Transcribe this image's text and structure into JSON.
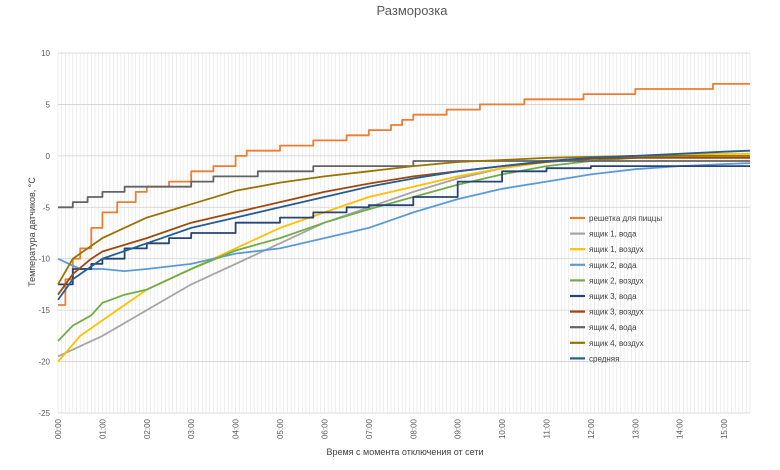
{
  "chart_data": {
    "type": "line",
    "title": "Разморозка",
    "xlabel": "Время с момента отключения от сети",
    "ylabel": "Температура датчиков, °C",
    "ylim": [
      -25,
      10
    ],
    "y_ticks": [
      "10",
      "5",
      "0",
      "-5",
      "-10",
      "-15",
      "-20",
      "-25"
    ],
    "xlim": [
      "00:00",
      "15:35"
    ],
    "x_ticks": [
      "00:00",
      "01:00",
      "02:00",
      "03:00",
      "04:00",
      "05:00",
      "06:00",
      "07:00",
      "08:00",
      "09:00",
      "10:00",
      "11:00",
      "12:00",
      "13:00",
      "14:00",
      "15:00"
    ],
    "grid": "dense vertical gridlines, horizontal at every 5 °C",
    "legend_position": "right",
    "series": [
      {
        "name": "решетка для пиццы",
        "color": "#ED7D31",
        "style": "step",
        "points": [
          [
            "00:00",
            -14.5
          ],
          [
            "00:10",
            -12
          ],
          [
            "00:20",
            -10
          ],
          [
            "00:30",
            -9
          ],
          [
            "00:45",
            -7
          ],
          [
            "01:00",
            -5.5
          ],
          [
            "01:20",
            -4.5
          ],
          [
            "01:45",
            -3.5
          ],
          [
            "02:00",
            -3
          ],
          [
            "02:30",
            -2.5
          ],
          [
            "03:00",
            -1.5
          ],
          [
            "03:30",
            -1
          ],
          [
            "04:00",
            0
          ],
          [
            "04:15",
            0.5
          ],
          [
            "05:00",
            1
          ],
          [
            "05:45",
            1.5
          ],
          [
            "06:30",
            2
          ],
          [
            "07:00",
            2.5
          ],
          [
            "07:30",
            3
          ],
          [
            "07:45",
            3.5
          ],
          [
            "08:00",
            4
          ],
          [
            "08:45",
            4.5
          ],
          [
            "09:30",
            5
          ],
          [
            "10:30",
            5.5
          ],
          [
            "11:50",
            6
          ],
          [
            "13:00",
            6.5
          ],
          [
            "14:45",
            7
          ],
          [
            "15:35",
            7
          ]
        ]
      },
      {
        "name": "ящик 1, вода",
        "color": "#A5A5A5",
        "style": "line",
        "points": [
          [
            "00:00",
            -19.5
          ],
          [
            "01:00",
            -17.5
          ],
          [
            "02:00",
            -15
          ],
          [
            "03:00",
            -12.5
          ],
          [
            "04:00",
            -10.5
          ],
          [
            "05:00",
            -8.5
          ],
          [
            "06:00",
            -6.5
          ],
          [
            "07:00",
            -5
          ],
          [
            "08:00",
            -3.5
          ],
          [
            "09:00",
            -2.2
          ],
          [
            "10:00",
            -1.2
          ],
          [
            "11:00",
            -0.6
          ],
          [
            "12:00",
            -0.3
          ],
          [
            "13:00",
            0
          ],
          [
            "14:00",
            0
          ],
          [
            "15:00",
            0
          ],
          [
            "15:35",
            0
          ]
        ]
      },
      {
        "name": "ящик 1, воздух",
        "color": "#FFC000",
        "style": "line",
        "points": [
          [
            "00:00",
            -20
          ],
          [
            "00:30",
            -17.5
          ],
          [
            "01:00",
            -16
          ],
          [
            "02:00",
            -13
          ],
          [
            "03:00",
            -11
          ],
          [
            "04:00",
            -9
          ],
          [
            "05:00",
            -7
          ],
          [
            "06:00",
            -5.5
          ],
          [
            "07:00",
            -4
          ],
          [
            "08:00",
            -3
          ],
          [
            "09:00",
            -2
          ],
          [
            "10:00",
            -1.2
          ],
          [
            "11:00",
            -0.6
          ],
          [
            "12:00",
            -0.2
          ],
          [
            "13:00",
            0
          ],
          [
            "14:00",
            0.1
          ],
          [
            "15:00",
            0.2
          ],
          [
            "15:35",
            0.2
          ]
        ]
      },
      {
        "name": "ящик 2, вода",
        "color": "#5B9BD5",
        "style": "line",
        "points": [
          [
            "00:00",
            -10
          ],
          [
            "00:15",
            -10.5
          ],
          [
            "00:30",
            -11
          ],
          [
            "01:00",
            -11
          ],
          [
            "01:30",
            -11.2
          ],
          [
            "02:00",
            -11
          ],
          [
            "03:00",
            -10.5
          ],
          [
            "04:00",
            -9.5
          ],
          [
            "05:00",
            -9
          ],
          [
            "06:00",
            -8
          ],
          [
            "07:00",
            -7
          ],
          [
            "08:00",
            -5.5
          ],
          [
            "09:00",
            -4.2
          ],
          [
            "10:00",
            -3.2
          ],
          [
            "11:00",
            -2.5
          ],
          [
            "12:00",
            -1.8
          ],
          [
            "13:00",
            -1.3
          ],
          [
            "14:00",
            -1
          ],
          [
            "15:00",
            -0.8
          ],
          [
            "15:35",
            -0.7
          ]
        ]
      },
      {
        "name": "ящик 2, воздух",
        "color": "#70AD47",
        "style": "line",
        "points": [
          [
            "00:00",
            -18
          ],
          [
            "00:20",
            -16.5
          ],
          [
            "00:45",
            -15.5
          ],
          [
            "01:00",
            -14.3
          ],
          [
            "01:30",
            -13.5
          ],
          [
            "02:00",
            -13
          ],
          [
            "03:00",
            -11
          ],
          [
            "04:00",
            -9.2
          ],
          [
            "05:00",
            -8
          ],
          [
            "06:00",
            -6.5
          ],
          [
            "07:00",
            -5.2
          ],
          [
            "08:00",
            -4
          ],
          [
            "09:00",
            -2.8
          ],
          [
            "10:00",
            -1.8
          ],
          [
            "11:00",
            -1
          ],
          [
            "12:00",
            -0.5
          ],
          [
            "13:00",
            -0.2
          ],
          [
            "14:00",
            0
          ],
          [
            "15:00",
            0
          ],
          [
            "15:35",
            0
          ]
        ]
      },
      {
        "name": "ящик 3, вода",
        "color": "#264478",
        "style": "step",
        "points": [
          [
            "00:00",
            -12.5
          ],
          [
            "00:20",
            -11
          ],
          [
            "00:45",
            -10.5
          ],
          [
            "01:00",
            -10
          ],
          [
            "01:30",
            -9
          ],
          [
            "02:00",
            -8.5
          ],
          [
            "02:30",
            -8
          ],
          [
            "03:00",
            -7.5
          ],
          [
            "04:00",
            -6.5
          ],
          [
            "05:00",
            -6
          ],
          [
            "05:45",
            -5.5
          ],
          [
            "06:30",
            -5
          ],
          [
            "07:00",
            -4.8
          ],
          [
            "08:00",
            -4
          ],
          [
            "09:00",
            -2.5
          ],
          [
            "10:00",
            -1.5
          ],
          [
            "11:00",
            -1.2
          ],
          [
            "12:00",
            -1
          ],
          [
            "13:00",
            -1
          ],
          [
            "14:00",
            -1
          ],
          [
            "15:00",
            -1
          ],
          [
            "15:35",
            -1
          ]
        ]
      },
      {
        "name": "ящик 3, воздух",
        "color": "#9E480E",
        "style": "line",
        "points": [
          [
            "00:00",
            -13.5
          ],
          [
            "00:20",
            -11.5
          ],
          [
            "00:45",
            -10
          ],
          [
            "01:00",
            -9.3
          ],
          [
            "02:00",
            -8
          ],
          [
            "03:00",
            -6.5
          ],
          [
            "04:00",
            -5.5
          ],
          [
            "05:00",
            -4.5
          ],
          [
            "06:00",
            -3.5
          ],
          [
            "07:00",
            -2.7
          ],
          [
            "08:00",
            -2
          ],
          [
            "09:00",
            -1.5
          ],
          [
            "10:00",
            -1
          ],
          [
            "11:00",
            -0.6
          ],
          [
            "12:00",
            -0.3
          ],
          [
            "13:00",
            -0.2
          ],
          [
            "14:00",
            -0.2
          ],
          [
            "15:00",
            -0.2
          ],
          [
            "15:35",
            -0.2
          ]
        ]
      },
      {
        "name": "ящик 4, вода",
        "color": "#636363",
        "style": "step",
        "points": [
          [
            "00:00",
            -5
          ],
          [
            "00:20",
            -4.5
          ],
          [
            "00:40",
            -4
          ],
          [
            "01:00",
            -3.5
          ],
          [
            "01:30",
            -3
          ],
          [
            "02:00",
            -3
          ],
          [
            "03:00",
            -2.5
          ],
          [
            "03:30",
            -2
          ],
          [
            "04:30",
            -1.5
          ],
          [
            "05:45",
            -1
          ],
          [
            "08:00",
            -0.5
          ],
          [
            "15:35",
            -0.5
          ]
        ]
      },
      {
        "name": "ящик 4, воздух",
        "color": "#997300",
        "style": "line",
        "points": [
          [
            "00:00",
            -12.5
          ],
          [
            "00:20",
            -10
          ],
          [
            "01:00",
            -8
          ],
          [
            "02:00",
            -6
          ],
          [
            "03:00",
            -4.7
          ],
          [
            "04:00",
            -3.4
          ],
          [
            "05:00",
            -2.6
          ],
          [
            "06:00",
            -2
          ],
          [
            "07:00",
            -1.5
          ],
          [
            "08:00",
            -1
          ],
          [
            "09:00",
            -0.6
          ],
          [
            "10:00",
            -0.4
          ],
          [
            "11:00",
            -0.2
          ],
          [
            "12:00",
            -0.1
          ],
          [
            "13:00",
            0
          ],
          [
            "14:00",
            0
          ],
          [
            "15:00",
            0
          ],
          [
            "15:35",
            0
          ]
        ]
      },
      {
        "name": "средняя",
        "color": "#255E91",
        "style": "line",
        "points": [
          [
            "00:00",
            -14
          ],
          [
            "00:20",
            -12
          ],
          [
            "01:00",
            -10
          ],
          [
            "02:00",
            -8.5
          ],
          [
            "03:00",
            -7
          ],
          [
            "04:00",
            -6
          ],
          [
            "05:00",
            -5
          ],
          [
            "06:00",
            -4
          ],
          [
            "07:00",
            -3
          ],
          [
            "08:00",
            -2.2
          ],
          [
            "09:00",
            -1.5
          ],
          [
            "10:00",
            -1
          ],
          [
            "11:00",
            -0.5
          ],
          [
            "12:00",
            -0.2
          ],
          [
            "13:00",
            0
          ],
          [
            "14:00",
            0.2
          ],
          [
            "15:00",
            0.4
          ],
          [
            "15:35",
            0.5
          ]
        ]
      }
    ]
  }
}
